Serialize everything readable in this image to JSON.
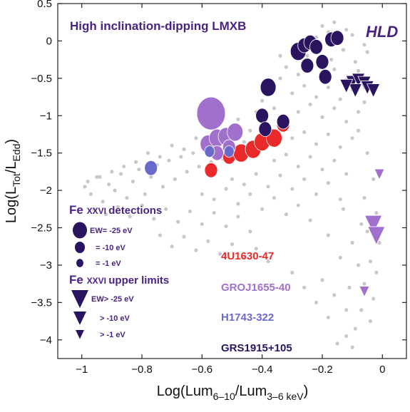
{
  "chart_data": {
    "type": "scatter",
    "title": "High inclination-dipping LMXB",
    "state_label": "HLD",
    "xlabel": {
      "main": "Log(Lum",
      "sub": "6–10",
      "mid": "/Lum",
      "sub2": "3–6 keV",
      "end": ")"
    },
    "ylabel": {
      "main": "Log(L",
      "sub": "Tot",
      "mid": "/L",
      "sub2": "Edd",
      "end": ")"
    },
    "xlim": [
      -1.08,
      0.08
    ],
    "ylim": [
      -4.25,
      0.5
    ],
    "xticks": [
      -1,
      -0.8,
      -0.6,
      -0.4,
      -0.2,
      0
    ],
    "xtick_labels": [
      "−1",
      "−0.8",
      "−0.6",
      "−0.4",
      "−0.2",
      "0"
    ],
    "yticks": [
      0.5,
      0,
      -0.5,
      -1,
      -1.5,
      -2,
      -2.5,
      -3,
      -3.5,
      -4
    ],
    "ytick_labels": [
      "0.5",
      "0",
      "−0.5",
      "−1",
      "−1.5",
      "−2",
      "−2.5",
      "−3",
      "−3.5",
      "−4"
    ],
    "grid": false,
    "colors": {
      "background": "#c8c8c8",
      "4U1630-47": "#ea2a2a",
      "GROJ1655-40": "#a070cc",
      "H1743-322": "#6a6acc",
      "GRS1915+105": "#2a1460",
      "text_purple": "#4a2380"
    },
    "background_points": [
      [
        -0.99,
        -1.95
      ],
      [
        -0.97,
        -2.05
      ],
      [
        -0.95,
        -1.82
      ],
      [
        -0.93,
        -2.15
      ],
      [
        -0.91,
        -1.92
      ],
      [
        -0.89,
        -2.0
      ],
      [
        -0.87,
        -1.78
      ],
      [
        -0.85,
        -2.1
      ],
      [
        -0.83,
        -1.88
      ],
      [
        -0.81,
        -1.72
      ],
      [
        -0.79,
        -2.05
      ],
      [
        -0.77,
        -1.82
      ],
      [
        -0.75,
        -1.66
      ],
      [
        -0.73,
        -1.95
      ],
      [
        -0.71,
        -1.6
      ],
      [
        -0.69,
        -1.85
      ],
      [
        -0.67,
        -1.55
      ],
      [
        -0.65,
        -1.75
      ],
      [
        -0.63,
        -1.5
      ],
      [
        -0.61,
        -1.68
      ],
      [
        -0.59,
        -1.45
      ],
      [
        -0.57,
        -1.62
      ],
      [
        -0.55,
        -1.4
      ],
      [
        -0.53,
        -1.58
      ],
      [
        -0.96,
        -2.25
      ],
      [
        -0.92,
        -2.32
      ],
      [
        -0.88,
        -2.22
      ],
      [
        -0.84,
        -2.35
      ],
      [
        -0.8,
        -2.2
      ],
      [
        -0.76,
        -2.38
      ],
      [
        -0.72,
        -2.25
      ],
      [
        -0.68,
        -2.42
      ],
      [
        -0.64,
        -2.28
      ],
      [
        -0.6,
        -2.45
      ],
      [
        -0.56,
        -2.3
      ],
      [
        -0.52,
        -2.48
      ],
      [
        -0.48,
        -2.35
      ],
      [
        -0.44,
        -2.55
      ],
      [
        -0.74,
        -2.6
      ],
      [
        -0.7,
        -2.75
      ],
      [
        -0.66,
        -2.62
      ],
      [
        -0.62,
        -2.8
      ],
      [
        -0.58,
        -2.68
      ],
      [
        -0.54,
        -2.85
      ],
      [
        -0.5,
        -2.72
      ],
      [
        -0.46,
        -2.9
      ],
      [
        -0.42,
        -2.78
      ],
      [
        -0.38,
        -2.95
      ],
      [
        -0.6,
        -2.05
      ],
      [
        -0.56,
        -2.12
      ],
      [
        -0.52,
        -1.98
      ],
      [
        -0.48,
        -2.18
      ],
      [
        -0.44,
        -2.05
      ],
      [
        -0.4,
        -2.25
      ],
      [
        -0.36,
        -2.1
      ],
      [
        -0.32,
        -2.32
      ],
      [
        -0.28,
        -2.2
      ],
      [
        -0.24,
        -2.4
      ],
      [
        -0.5,
        -1.85
      ],
      [
        -0.46,
        -1.92
      ],
      [
        -0.42,
        -1.78
      ],
      [
        -0.38,
        -1.95
      ],
      [
        -0.34,
        -1.8
      ],
      [
        -0.3,
        -1.98
      ],
      [
        -0.26,
        -1.85
      ],
      [
        -0.22,
        -2.05
      ],
      [
        -0.18,
        -1.9
      ],
      [
        -0.14,
        -2.12
      ],
      [
        -0.36,
        -1.6
      ],
      [
        -0.32,
        -1.52
      ],
      [
        -0.28,
        -1.68
      ],
      [
        -0.24,
        -1.55
      ],
      [
        -0.2,
        -1.72
      ],
      [
        -0.16,
        -1.6
      ],
      [
        -0.12,
        -1.78
      ],
      [
        -0.3,
        -1.3
      ],
      [
        -0.26,
        -1.22
      ],
      [
        -0.22,
        -1.38
      ],
      [
        -0.18,
        -1.25
      ],
      [
        -0.14,
        -1.42
      ],
      [
        -0.1,
        -1.3
      ],
      [
        -0.28,
        -0.95
      ],
      [
        -0.24,
        -0.85
      ],
      [
        -0.2,
        -1.02
      ],
      [
        -0.16,
        -0.9
      ],
      [
        -0.12,
        -1.08
      ],
      [
        -0.08,
        -0.95
      ],
      [
        -0.3,
        -0.7
      ],
      [
        -0.26,
        -0.6
      ],
      [
        -0.22,
        -0.75
      ],
      [
        -0.18,
        -0.62
      ],
      [
        -0.14,
        -0.78
      ],
      [
        -0.1,
        -0.65
      ],
      [
        -0.06,
        -0.82
      ],
      [
        -0.28,
        -0.45
      ],
      [
        -0.24,
        -0.35
      ],
      [
        -0.2,
        -0.5
      ],
      [
        -0.16,
        -0.38
      ],
      [
        -0.12,
        -0.52
      ],
      [
        -0.08,
        -0.4
      ],
      [
        -0.04,
        -0.55
      ],
      [
        -0.25,
        -0.2
      ],
      [
        -0.21,
        -0.1
      ],
      [
        -0.17,
        -0.25
      ],
      [
        -0.13,
        -0.12
      ],
      [
        -0.09,
        -0.28
      ],
      [
        -0.05,
        -0.15
      ],
      [
        -0.22,
        0.05
      ],
      [
        -0.18,
        0.12
      ],
      [
        -0.14,
        -0.02
      ],
      [
        -0.1,
        0.08
      ],
      [
        -0.06,
        -0.05
      ],
      [
        -0.2,
        0.2
      ],
      [
        -0.16,
        0.25
      ],
      [
        -0.12,
        0.15
      ],
      [
        -0.38,
        -0.6
      ],
      [
        -0.34,
        -0.5
      ],
      [
        -0.4,
        -0.8
      ],
      [
        -0.36,
        -0.9
      ],
      [
        -0.32,
        -0.35
      ],
      [
        -0.34,
        -0.2
      ],
      [
        -0.3,
        -0.1
      ],
      [
        -0.26,
        0.0
      ],
      [
        -0.08,
        -1.2
      ],
      [
        -0.05,
        -1.5
      ],
      [
        -0.03,
        -1.85
      ],
      [
        -0.06,
        -2.1
      ],
      [
        -0.02,
        -2.3
      ],
      [
        -0.05,
        -2.55
      ],
      [
        -0.01,
        -2.7
      ],
      [
        -0.04,
        -2.95
      ],
      [
        -0.02,
        -3.1
      ],
      [
        -0.06,
        -3.25
      ],
      [
        -0.03,
        -3.45
      ],
      [
        -0.07,
        -3.6
      ],
      [
        -0.04,
        -3.75
      ],
      [
        -0.09,
        -3.85
      ],
      [
        -0.12,
        -3.95
      ],
      [
        -0.15,
        -4.05
      ],
      [
        -0.1,
        -4.1
      ],
      [
        -0.18,
        -3.7
      ],
      [
        -0.22,
        -3.5
      ],
      [
        -0.26,
        -3.3
      ],
      [
        -0.3,
        -3.1
      ],
      [
        -0.2,
        -3.2
      ],
      [
        -0.16,
        -3.4
      ],
      [
        -0.12,
        -3.6
      ],
      [
        -0.14,
        -2.9
      ],
      [
        -0.1,
        -2.7
      ],
      [
        -0.18,
        -2.6
      ],
      [
        -0.08,
        -3.0
      ],
      [
        -0.11,
        -3.3
      ],
      [
        -0.07,
        -2.45
      ],
      [
        -0.13,
        -2.25
      ],
      [
        -0.44,
        -1.2
      ],
      [
        -0.48,
        -1.05
      ],
      [
        -0.42,
        -0.95
      ],
      [
        -0.46,
        -1.35
      ],
      [
        -0.52,
        -1.25
      ],
      [
        -0.56,
        -1.15
      ],
      [
        -0.62,
        -1.3
      ],
      [
        -0.66,
        -1.45
      ],
      [
        -0.7,
        -1.4
      ],
      [
        -0.74,
        -1.55
      ],
      [
        -0.78,
        -1.5
      ],
      [
        -0.82,
        -1.62
      ],
      [
        -0.86,
        -1.68
      ],
      [
        -0.9,
        -1.75
      ],
      [
        -0.94,
        -1.82
      ],
      [
        -0.98,
        -1.88
      ]
    ],
    "detections": [
      {
        "source": "4U1630-47",
        "x": -0.57,
        "y": -1.73,
        "ew": 10
      },
      {
        "source": "4U1630-47",
        "x": -0.51,
        "y": -1.55,
        "ew": 10
      },
      {
        "source": "4U1630-47",
        "x": -0.47,
        "y": -1.5,
        "ew": 25
      },
      {
        "source": "4U1630-47",
        "x": -0.43,
        "y": -1.45,
        "ew": 25
      },
      {
        "source": "4U1630-47",
        "x": -0.4,
        "y": -1.35,
        "ew": 25
      },
      {
        "source": "4U1630-47",
        "x": -0.36,
        "y": -1.3,
        "ew": 25
      },
      {
        "source": "4U1630-47",
        "x": -0.33,
        "y": -1.12,
        "ew": 10
      },
      {
        "source": "GROJ1655-40",
        "x": -0.57,
        "y": -0.97,
        "ew": 60
      },
      {
        "source": "GROJ1655-40",
        "x": -0.58,
        "y": -1.38,
        "ew": 25
      },
      {
        "source": "GROJ1655-40",
        "x": -0.55,
        "y": -1.3,
        "ew": 25
      },
      {
        "source": "GROJ1655-40",
        "x": -0.52,
        "y": -1.28,
        "ew": 25
      },
      {
        "source": "GROJ1655-40",
        "x": -0.49,
        "y": -1.22,
        "ew": 25
      },
      {
        "source": "GROJ1655-40",
        "x": -0.55,
        "y": -1.5,
        "ew": 10
      },
      {
        "source": "GROJ1655-40",
        "x": -0.51,
        "y": -1.42,
        "ew": 10
      },
      {
        "source": "H1743-322",
        "x": -0.77,
        "y": -1.7,
        "ew": 10
      },
      {
        "source": "H1743-322",
        "x": -0.575,
        "y": -1.48,
        "ew": 1
      },
      {
        "source": "H1743-322",
        "x": -0.51,
        "y": -1.48,
        "ew": 1
      },
      {
        "source": "GRS1915+105",
        "x": -0.38,
        "y": -0.62,
        "ew": 25
      },
      {
        "source": "GRS1915+105",
        "x": -0.4,
        "y": -1.0,
        "ew": 10
      },
      {
        "source": "GRS1915+105",
        "x": -0.39,
        "y": -1.18,
        "ew": 10
      },
      {
        "source": "GRS1915+105",
        "x": -0.33,
        "y": -1.08,
        "ew": 10
      },
      {
        "source": "GRS1915+105",
        "x": -0.28,
        "y": -0.14,
        "ew": 25
      },
      {
        "source": "GRS1915+105",
        "x": -0.26,
        "y": -0.06,
        "ew": 10
      },
      {
        "source": "GRS1915+105",
        "x": -0.24,
        "y": -0.02,
        "ew": 10
      },
      {
        "source": "GRS1915+105",
        "x": -0.22,
        "y": -0.08,
        "ew": 10
      },
      {
        "source": "GRS1915+105",
        "x": -0.25,
        "y": -0.33,
        "ew": 10
      },
      {
        "source": "GRS1915+105",
        "x": -0.2,
        "y": -0.28,
        "ew": 10
      },
      {
        "source": "GRS1915+105",
        "x": -0.19,
        "y": -0.48,
        "ew": 10
      },
      {
        "source": "GRS1915+105",
        "x": -0.17,
        "y": 0.02,
        "ew": 10
      },
      {
        "source": "GRS1915+105",
        "x": -0.15,
        "y": 0.04,
        "ew": 10
      }
    ],
    "upper_limits": [
      {
        "source": "GRS1915+105",
        "x": -0.1,
        "y": -0.55,
        "ew": 10
      },
      {
        "source": "GRS1915+105",
        "x": -0.08,
        "y": -0.52,
        "ew": 10
      },
      {
        "source": "GRS1915+105",
        "x": -0.06,
        "y": -0.56,
        "ew": 10
      },
      {
        "source": "GRS1915+105",
        "x": -0.05,
        "y": -0.62,
        "ew": 10
      },
      {
        "source": "GRS1915+105",
        "x": -0.03,
        "y": -0.66,
        "ew": 10
      },
      {
        "source": "GRS1915+105",
        "x": -0.09,
        "y": -0.66,
        "ew": 10
      },
      {
        "source": "GRS1915+105",
        "x": -0.12,
        "y": -0.6,
        "ew": 10
      },
      {
        "source": "GROJ1655-40",
        "x": -0.03,
        "y": -2.45,
        "ew": 25
      },
      {
        "source": "GROJ1655-40",
        "x": -0.02,
        "y": -2.6,
        "ew": 25
      },
      {
        "source": "GROJ1655-40",
        "x": -0.01,
        "y": -1.78,
        "ew": 1
      },
      {
        "source": "GROJ1655-40",
        "x": -0.06,
        "y": -3.35,
        "ew": 1
      }
    ],
    "legend": {
      "detections_heading": {
        "fe": "Fe",
        "ion": "XXVI",
        "rest": "detections"
      },
      "detection_items": [
        {
          "label": "EW= -25 eV",
          "ew": 25
        },
        {
          "label": "= -10 eV",
          "ew": 10
        },
        {
          "label": "= -1 eV",
          "ew": 1
        }
      ],
      "upper_heading": {
        "fe": "Fe",
        "ion": "XXVI",
        "rest": "upper limits"
      },
      "upper_items": [
        {
          "label": "EW> -25 eV",
          "ew": 25
        },
        {
          "label": "> -10 eV",
          "ew": 10
        },
        {
          "label": "> -1 eV",
          "ew": 1
        }
      ],
      "sources": [
        "4U1630-47",
        "GROJ1655-40",
        "H1743-322",
        "GRS1915+105"
      ]
    }
  }
}
